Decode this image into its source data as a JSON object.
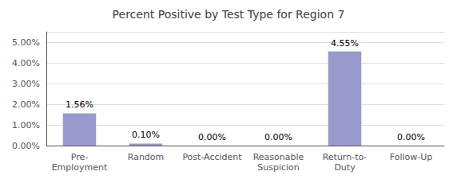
{
  "chart_data": {
    "type": "bar",
    "title": "Percent Positive by Test Type for Region 7",
    "categories": [
      "Pre-\nEmployment",
      "Random",
      "Post-Accident",
      "Reasonable\nSuspicion",
      "Return-to-\nDuty",
      "Follow-Up"
    ],
    "values": [
      0.0156,
      0.001,
      0.0,
      0.0,
      0.0455,
      0.0
    ],
    "value_labels": [
      "1.56%",
      "0.10%",
      "0.00%",
      "0.00%",
      "4.55%",
      "0.00%"
    ],
    "data_labels": true,
    "color": "#9999cc",
    "ylim": [
      0,
      0.055
    ],
    "yticks": [
      {
        "value": 0.0,
        "label": "0.00%"
      },
      {
        "value": 0.01,
        "label": "1.00%"
      },
      {
        "value": 0.02,
        "label": "2.00%"
      },
      {
        "value": 0.03,
        "label": "3.00%"
      },
      {
        "value": 0.04,
        "label": "4.00%"
      },
      {
        "value": 0.05,
        "label": "5.00%"
      }
    ],
    "grid": true
  }
}
